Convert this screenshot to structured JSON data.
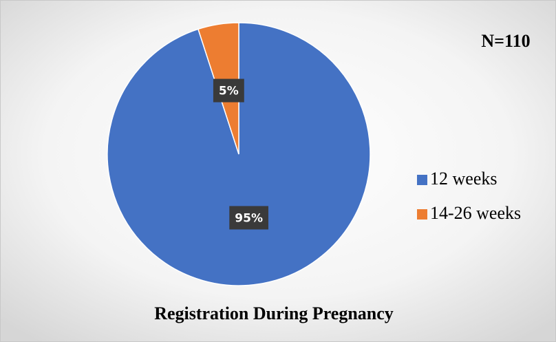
{
  "chart_data": {
    "type": "pie",
    "title": "Registration During Pregnancy",
    "annotation": "N=110",
    "categories": [
      "12 weeks",
      "14-26 weeks"
    ],
    "values": [
      95,
      5
    ],
    "value_labels": [
      "95%",
      "5%"
    ],
    "colors": [
      "#4472c4",
      "#ed7d31"
    ],
    "legend": "right"
  }
}
